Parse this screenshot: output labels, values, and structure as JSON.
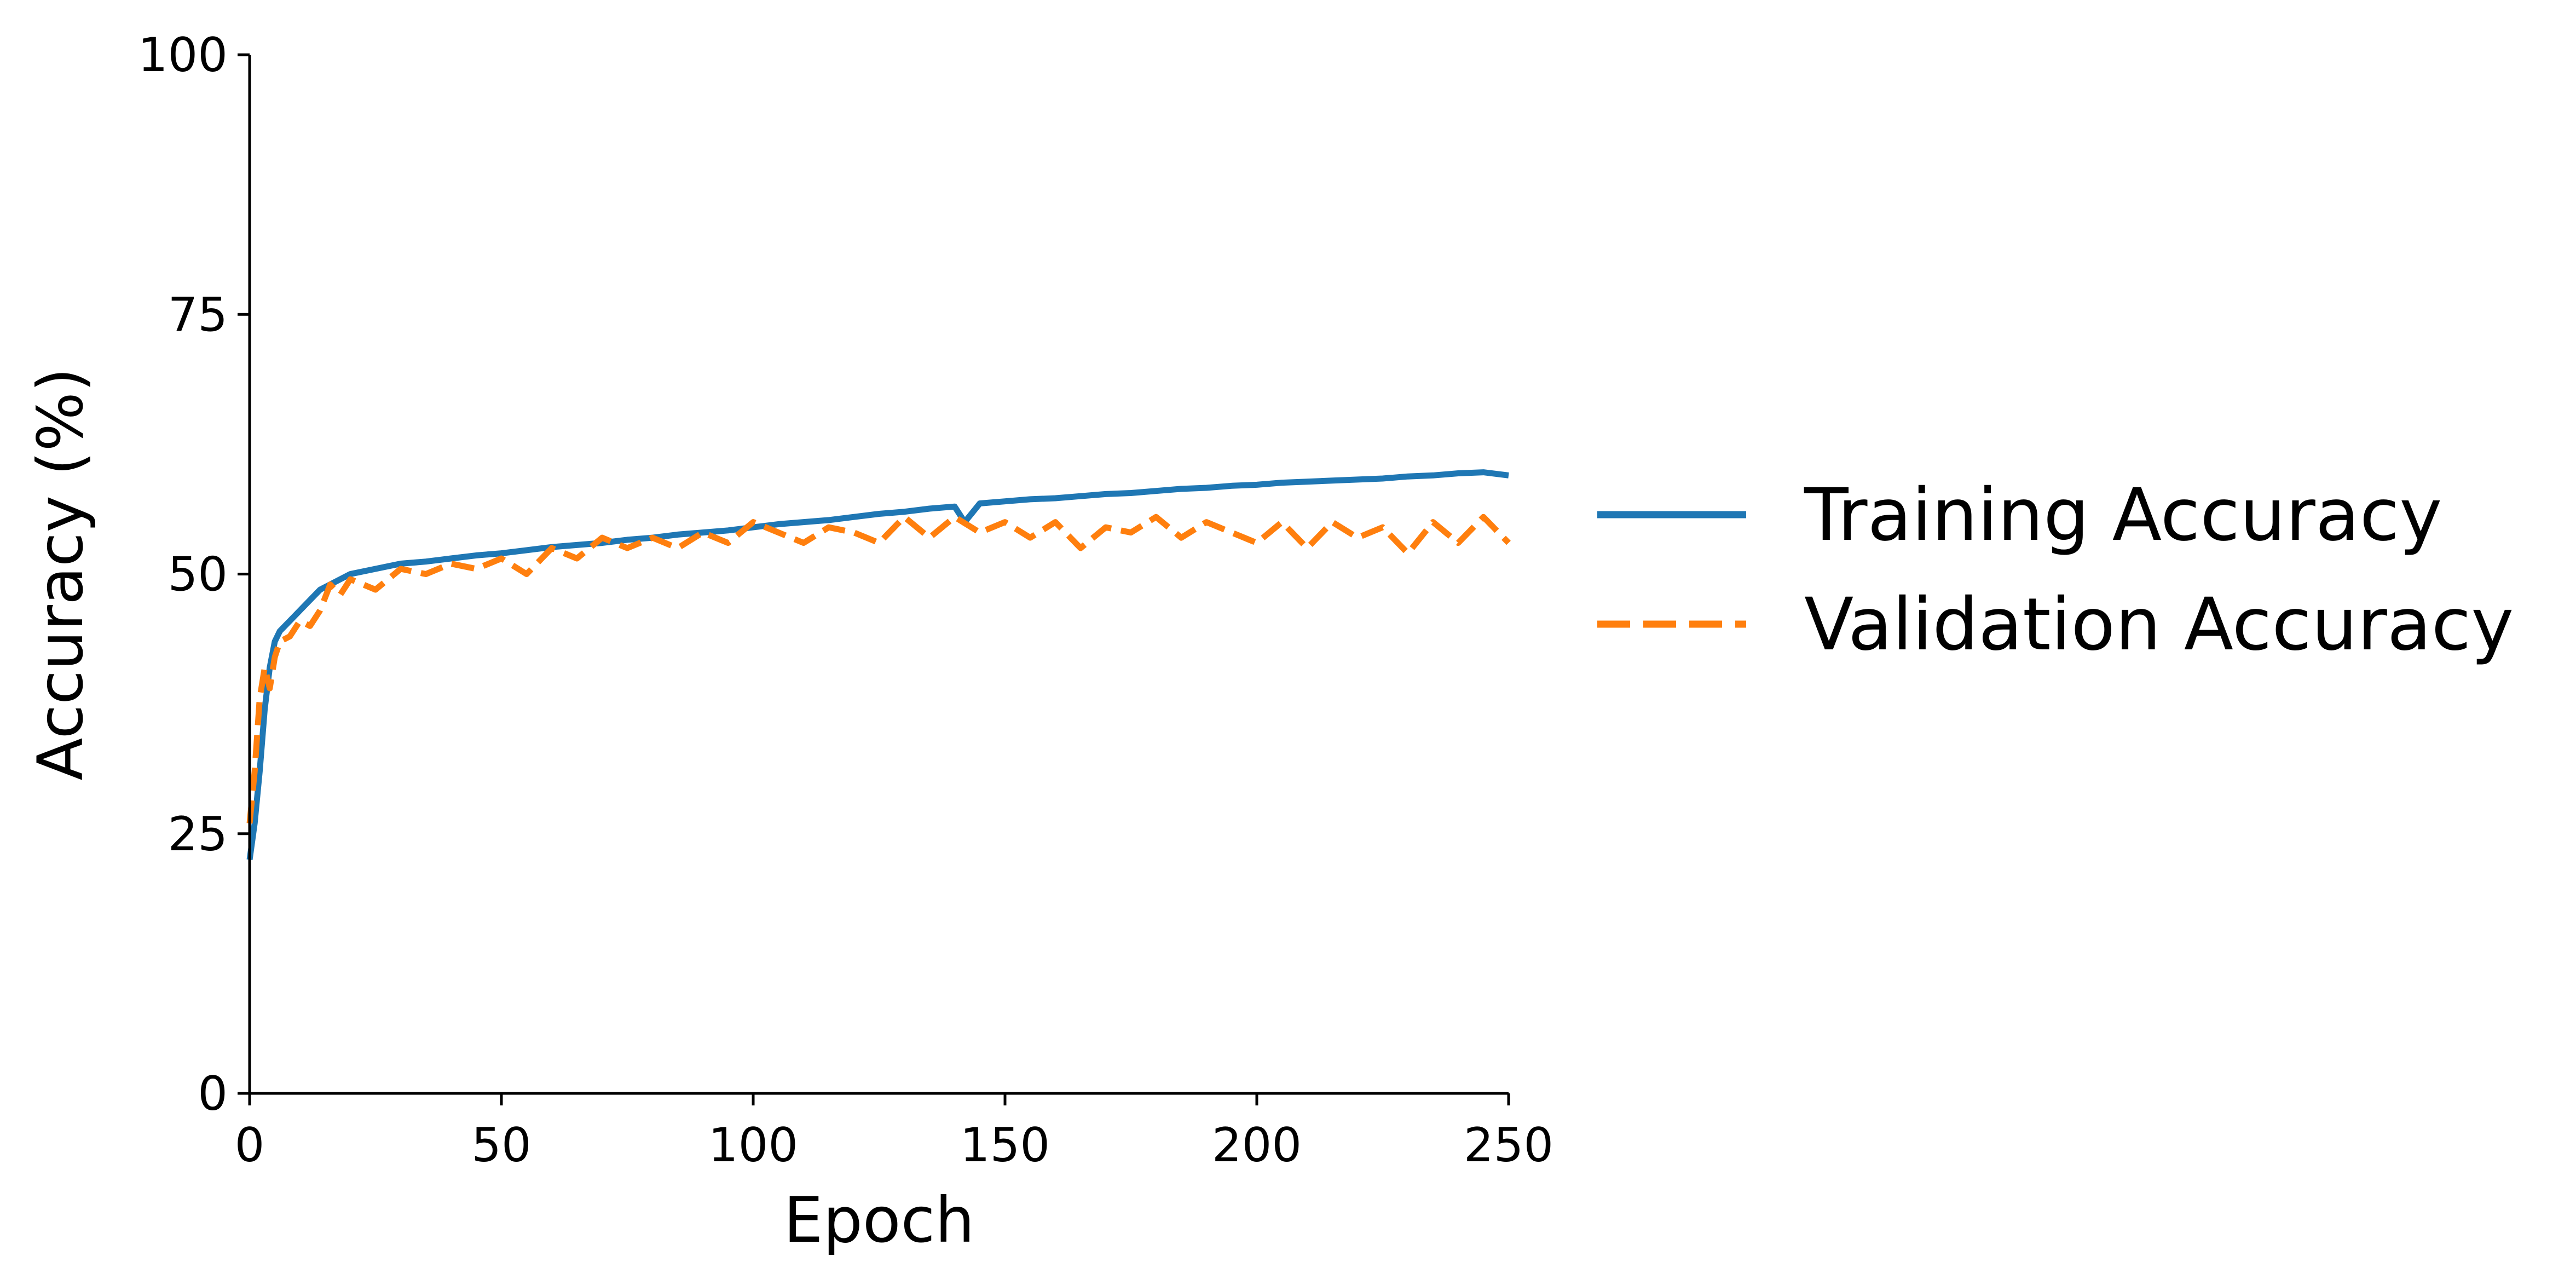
{
  "chart_data": {
    "type": "line",
    "title": "",
    "xlabel": "Epoch",
    "ylabel": "Accuracy (%)",
    "xlim": [
      0,
      250
    ],
    "ylim": [
      0,
      100
    ],
    "xticks": [
      0,
      50,
      100,
      150,
      200,
      250
    ],
    "yticks": [
      0,
      25,
      50,
      75,
      100
    ],
    "grid": false,
    "legend_position": "right-outside",
    "series": [
      {
        "name": "Training Accuracy",
        "color": "#1f77b4",
        "style": "solid",
        "x": [
          0,
          1,
          2,
          3,
          4,
          5,
          6,
          8,
          10,
          12,
          14,
          16,
          18,
          20,
          25,
          30,
          35,
          40,
          45,
          50,
          55,
          60,
          65,
          70,
          75,
          80,
          85,
          90,
          95,
          100,
          105,
          110,
          115,
          120,
          125,
          130,
          135,
          140,
          142,
          145,
          150,
          155,
          160,
          165,
          170,
          175,
          180,
          185,
          190,
          195,
          200,
          205,
          210,
          215,
          220,
          225,
          230,
          235,
          240,
          245,
          250
        ],
        "y": [
          22.5,
          26,
          31,
          37,
          41,
          43.5,
          44.5,
          45.5,
          46.5,
          47.5,
          48.5,
          49,
          49.5,
          50,
          50.5,
          51,
          51.2,
          51.5,
          51.8,
          52,
          52.3,
          52.6,
          52.8,
          53,
          53.3,
          53.5,
          53.8,
          54,
          54.2,
          54.5,
          54.8,
          55,
          55.2,
          55.5,
          55.8,
          56,
          56.3,
          56.5,
          55,
          56.8,
          57,
          57.2,
          57.3,
          57.5,
          57.7,
          57.8,
          58,
          58.2,
          58.3,
          58.5,
          58.6,
          58.8,
          58.9,
          59,
          59.1,
          59.2,
          59.4,
          59.5,
          59.7,
          59.8,
          59.5
        ]
      },
      {
        "name": "Validation Accuracy",
        "color": "#ff7f0e",
        "style": "dashed",
        "x": [
          0,
          1,
          2,
          3,
          4,
          5,
          6,
          8,
          10,
          12,
          14,
          16,
          18,
          20,
          25,
          30,
          35,
          40,
          45,
          50,
          55,
          60,
          65,
          70,
          75,
          80,
          85,
          90,
          95,
          100,
          105,
          110,
          115,
          120,
          125,
          130,
          135,
          140,
          145,
          150,
          155,
          160,
          165,
          170,
          175,
          180,
          185,
          190,
          195,
          200,
          205,
          210,
          215,
          220,
          225,
          230,
          235,
          240,
          245,
          250
        ],
        "y": [
          26,
          31,
          38,
          41,
          39,
          42,
          43.5,
          44,
          45.5,
          45,
          46.5,
          49,
          48,
          49.5,
          48.5,
          50.5,
          50,
          51,
          50.5,
          51.5,
          50,
          52.5,
          51.5,
          53.5,
          52.5,
          53.5,
          52.5,
          54,
          53,
          55,
          54,
          53,
          54.5,
          54,
          53,
          55.5,
          53.5,
          55.5,
          54,
          55,
          53.5,
          55,
          52.5,
          54.5,
          54,
          55.5,
          53.5,
          55,
          54,
          53,
          55,
          52.5,
          55,
          53.5,
          54.5,
          52,
          55,
          53,
          55.5,
          53
        ]
      }
    ]
  }
}
